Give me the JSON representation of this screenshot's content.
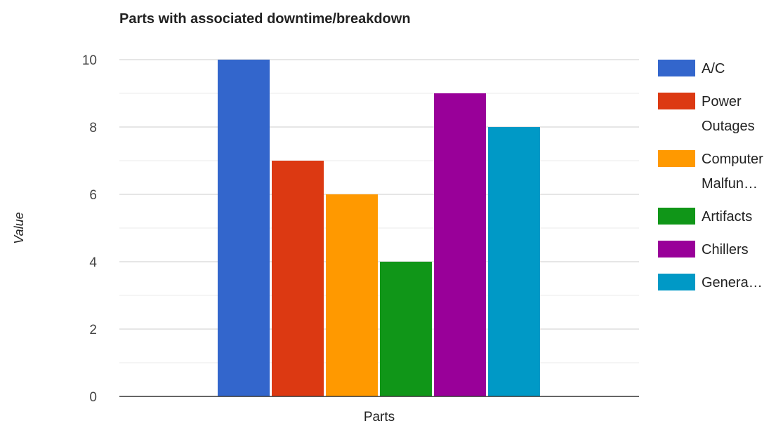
{
  "chart_data": {
    "type": "bar",
    "title": "Parts with associated downtime/breakdown",
    "xlabel": "Parts",
    "ylabel": "Value",
    "categories": [
      "Parts"
    ],
    "ylim": [
      0,
      10
    ],
    "y_ticks": [
      "0",
      "2",
      "4",
      "6",
      "8",
      "10"
    ],
    "grid": true,
    "legend_position": "right",
    "series": [
      {
        "name": "A/C",
        "legend_lines": [
          "A/C"
        ],
        "values": [
          10
        ],
        "color": "#3366cc"
      },
      {
        "name": "Power Outages",
        "legend_lines": [
          "Power",
          "Outages"
        ],
        "values": [
          7
        ],
        "color": "#dc3912"
      },
      {
        "name": "Computer Malfun…",
        "legend_lines": [
          "Computer",
          "Malfun…"
        ],
        "values": [
          6
        ],
        "color": "#ff9900"
      },
      {
        "name": "Artifacts",
        "legend_lines": [
          "Artifacts"
        ],
        "values": [
          4
        ],
        "color": "#109618"
      },
      {
        "name": "Chillers",
        "legend_lines": [
          "Chillers"
        ],
        "values": [
          9
        ],
        "color": "#990099"
      },
      {
        "name": "Genera…",
        "legend_lines": [
          "Genera…"
        ],
        "values": [
          8
        ],
        "color": "#0099c6"
      }
    ]
  }
}
